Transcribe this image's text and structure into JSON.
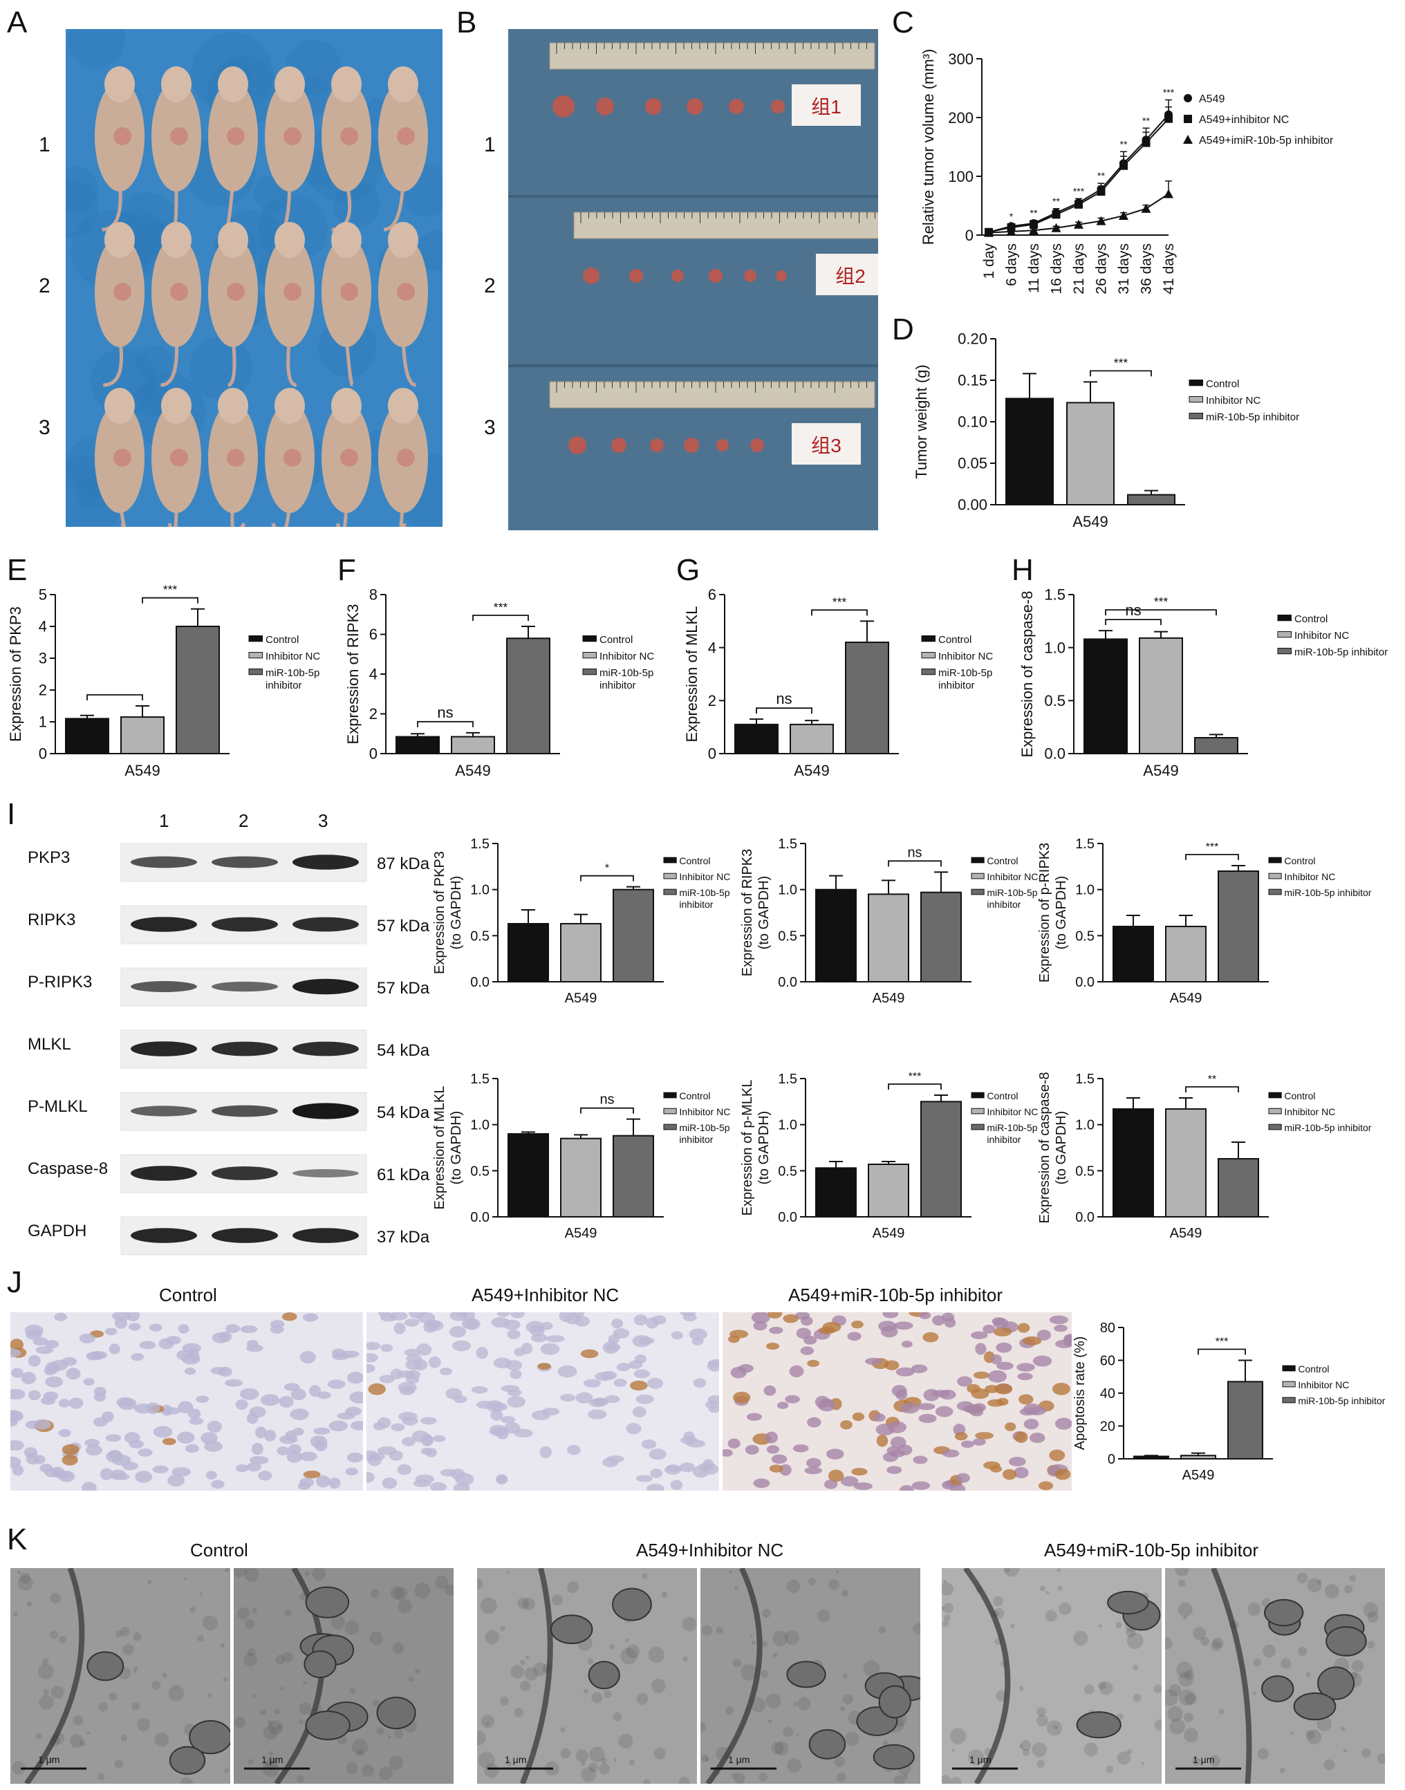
{
  "panels": {
    "A": "A",
    "B": "B",
    "C": "C",
    "D": "D",
    "E": "E",
    "F": "F",
    "G": "G",
    "H": "H",
    "I": "I",
    "J": "J",
    "K": "K"
  },
  "row_numbers": [
    "1",
    "2",
    "3"
  ],
  "group_labels_b": [
    "组1",
    "组2",
    "组3"
  ],
  "blot": {
    "lanes": [
      "1",
      "2",
      "3"
    ],
    "proteins": [
      "PKP3",
      "RIPK3",
      "P-RIPK3",
      "MLKL",
      "P-MLKL",
      "Caspase-8",
      "GAPDH"
    ],
    "sizes": [
      "87 kDa",
      "57 kDa",
      "57 kDa",
      "54 kDa",
      "54 kDa",
      "61 kDa",
      "37 kDa"
    ],
    "intensity": [
      [
        0.55,
        0.55,
        0.85
      ],
      [
        0.85,
        0.8,
        0.8
      ],
      [
        0.5,
        0.4,
        0.9
      ],
      [
        0.85,
        0.8,
        0.8
      ],
      [
        0.45,
        0.55,
        0.95
      ],
      [
        0.85,
        0.75,
        0.25
      ],
      [
        0.85,
        0.85,
        0.85
      ]
    ]
  },
  "ihc": {
    "titles": [
      "Control",
      "A549+Inhibitor NC",
      "A549+miR-10b-5p inhibitor"
    ]
  },
  "tem": {
    "titles": [
      "Control",
      "A549+Inhibitor NC",
      "A549+miR-10b-5p inhibitor"
    ],
    "scale_label": "1 μm"
  },
  "colors": {
    "black": "#111111",
    "light": "#b3b3b3",
    "dark": "#6b6b6b",
    "mouse": "#c9ad98",
    "towel": "#3a86c4",
    "bench": "#4e7390"
  },
  "chart_data": [
    {
      "id": "C",
      "type": "line",
      "ylabel": "Relative tumor volume (mm³)",
      "ylim": [
        0,
        300
      ],
      "yticks": [
        0,
        100,
        200,
        300
      ],
      "categories": [
        "1 day",
        "6 days",
        "11 days",
        "16 days",
        "21 days",
        "26 days",
        "31 days",
        "36 days",
        "41 days"
      ],
      "series": [
        {
          "name": "A549",
          "marker": "circle",
          "values": [
            5,
            15,
            20,
            38,
            55,
            78,
            122,
            162,
            205
          ],
          "err": [
            3,
            4,
            5,
            7,
            7,
            10,
            20,
            20,
            25
          ]
        },
        {
          "name": "A549+inhibitor NC",
          "marker": "square",
          "values": [
            5,
            13,
            18,
            35,
            52,
            74,
            118,
            157,
            198
          ],
          "err": [
            3,
            4,
            5,
            6,
            7,
            9,
            16,
            18,
            20
          ]
        },
        {
          "name": "A549+imiR-10b-5p inhibitor",
          "marker": "triangle",
          "values": [
            4,
            6,
            8,
            12,
            18,
            24,
            33,
            45,
            70
          ],
          "err": [
            2,
            2,
            3,
            3,
            4,
            5,
            5,
            6,
            22
          ]
        }
      ],
      "sig": [
        "*",
        "**",
        "**",
        "***",
        "**",
        "**",
        "**",
        "***"
      ]
    },
    {
      "id": "D",
      "type": "bar",
      "ylabel": "Tumor weight (g)",
      "xlabel": "A549",
      "ylim": [
        0,
        0.2
      ],
      "yticks": [
        "0.00",
        "0.05",
        "0.10",
        "0.15",
        "0.20"
      ],
      "series": [
        {
          "name": "Control",
          "value": 0.128,
          "err": 0.03
        },
        {
          "name": "Inhibitor NC",
          "value": 0.123,
          "err": 0.025
        },
        {
          "name": "miR-10b-5p inhibitor",
          "value": 0.012,
          "err": 0.005
        }
      ],
      "brackets": [
        {
          "from": 1,
          "to": 2,
          "label": "***"
        }
      ]
    },
    {
      "id": "E",
      "type": "bar",
      "ylabel": "Expression of PKP3",
      "xlabel": "A549",
      "ylim": [
        0,
        5
      ],
      "yticks": [
        "0",
        "1",
        "2",
        "3",
        "4",
        "5"
      ],
      "series": [
        {
          "name": "Control",
          "value": 1.1,
          "err": 0.1
        },
        {
          "name": "Inhibitor NC",
          "value": 1.15,
          "err": 0.35
        },
        {
          "name": "miR-10b-5p inhibitor",
          "value": 4.0,
          "err": 0.55
        }
      ],
      "brackets": [
        {
          "from": 0,
          "to": 1,
          "label": ""
        },
        {
          "from": 1,
          "to": 2,
          "label": "***"
        }
      ]
    },
    {
      "id": "F",
      "type": "bar",
      "ylabel": "Expression of RIPK3",
      "xlabel": "A549",
      "ylim": [
        0,
        8
      ],
      "yticks": [
        "0",
        "2",
        "4",
        "6",
        "8"
      ],
      "series": [
        {
          "name": "Control",
          "value": 0.85,
          "err": 0.15
        },
        {
          "name": "Inhibitor NC",
          "value": 0.85,
          "err": 0.2
        },
        {
          "name": "miR-10b-5p inhibitor",
          "value": 5.8,
          "err": 0.6
        }
      ],
      "brackets": [
        {
          "from": 0,
          "to": 1,
          "label": "ns"
        },
        {
          "from": 1,
          "to": 2,
          "label": "***"
        }
      ]
    },
    {
      "id": "G",
      "type": "bar",
      "ylabel": "Expression of MLKL",
      "xlabel": "A549",
      "ylim": [
        0,
        6
      ],
      "yticks": [
        "0",
        "2",
        "4",
        "6"
      ],
      "series": [
        {
          "name": "Control",
          "value": 1.1,
          "err": 0.2
        },
        {
          "name": "Inhibitor NC",
          "value": 1.1,
          "err": 0.15
        },
        {
          "name": "miR-10b-5p inhibitor",
          "value": 4.2,
          "err": 0.8
        }
      ],
      "brackets": [
        {
          "from": 0,
          "to": 1,
          "label": "ns"
        },
        {
          "from": 1,
          "to": 2,
          "label": "***"
        }
      ]
    },
    {
      "id": "H",
      "type": "bar",
      "ylabel": "Expression of caspase-8",
      "xlabel": "A549",
      "ylim": [
        0,
        1.5
      ],
      "yticks": [
        "0.0",
        "0.5",
        "1.0",
        "1.5"
      ],
      "series": [
        {
          "name": "Control",
          "value": 1.08,
          "err": 0.08
        },
        {
          "name": "Inhibitor NC",
          "value": 1.09,
          "err": 0.06
        },
        {
          "name": "miR-10b-5p inhibitor",
          "value": 0.15,
          "err": 0.03
        }
      ],
      "brackets": [
        {
          "from": 0,
          "to": 1,
          "label": "ns"
        },
        {
          "from": 0,
          "to": 2,
          "label": "***"
        }
      ]
    },
    {
      "id": "I1",
      "type": "bar",
      "ylabel": "Expression of PKP3 (to GAPDH)",
      "xlabel": "A549",
      "ylim": [
        0,
        1.5
      ],
      "yticks": [
        "0.0",
        "0.5",
        "1.0",
        "1.5"
      ],
      "series": [
        {
          "name": "Control",
          "value": 0.63,
          "err": 0.15
        },
        {
          "name": "Inhibitor NC",
          "value": 0.63,
          "err": 0.1
        },
        {
          "name": "miR-10b-5p inhibitor",
          "value": 1.0,
          "err": 0.03
        }
      ],
      "brackets": [
        {
          "from": 1,
          "to": 2,
          "label": "*"
        }
      ]
    },
    {
      "id": "I2",
      "type": "bar",
      "ylabel": "Expression of RIPK3 (to GAPDH)",
      "xlabel": "A549",
      "ylim": [
        0,
        1.5
      ],
      "yticks": [
        "0.0",
        "0.5",
        "1.0",
        "1.5"
      ],
      "series": [
        {
          "name": "Control",
          "value": 1.0,
          "err": 0.15
        },
        {
          "name": "Inhibitor NC",
          "value": 0.95,
          "err": 0.15
        },
        {
          "name": "miR-10b-5p inhibitor",
          "value": 0.97,
          "err": 0.22
        }
      ],
      "brackets": [
        {
          "from": 1,
          "to": 2,
          "label": "ns"
        }
      ]
    },
    {
      "id": "I3",
      "type": "bar",
      "ylabel": "Expression of p-RIPK3 (to GAPDH)",
      "xlabel": "A549",
      "ylim": [
        0,
        1.5
      ],
      "yticks": [
        "0.0",
        "0.5",
        "1.0",
        "1.5"
      ],
      "series": [
        {
          "name": "Control",
          "value": 0.6,
          "err": 0.12
        },
        {
          "name": "Inhibitor NC",
          "value": 0.6,
          "err": 0.12
        },
        {
          "name": "miR-10b-5p inhibitor",
          "value": 1.2,
          "err": 0.06
        }
      ],
      "brackets": [
        {
          "from": 1,
          "to": 2,
          "label": "***"
        }
      ]
    },
    {
      "id": "I4",
      "type": "bar",
      "ylabel": "Expression of MLKL (to GAPDH)",
      "xlabel": "A549",
      "ylim": [
        0,
        1.5
      ],
      "yticks": [
        "0.0",
        "0.5",
        "1.0",
        "1.5"
      ],
      "series": [
        {
          "name": "Control",
          "value": 0.9,
          "err": 0.02
        },
        {
          "name": "Inhibitor NC",
          "value": 0.85,
          "err": 0.04
        },
        {
          "name": "miR-10b-5p inhibitor",
          "value": 0.88,
          "err": 0.18
        }
      ],
      "brackets": [
        {
          "from": 1,
          "to": 2,
          "label": "ns"
        }
      ]
    },
    {
      "id": "I5",
      "type": "bar",
      "ylabel": "Expression of p-MLKL (to GAPDH)",
      "xlabel": "A549",
      "ylim": [
        0,
        1.5
      ],
      "yticks": [
        "0.0",
        "0.5",
        "1.0",
        "1.5"
      ],
      "series": [
        {
          "name": "Control",
          "value": 0.53,
          "err": 0.07
        },
        {
          "name": "Inhibitor NC",
          "value": 0.57,
          "err": 0.03
        },
        {
          "name": "miR-10b-5p inhibitor",
          "value": 1.25,
          "err": 0.07
        }
      ],
      "brackets": [
        {
          "from": 1,
          "to": 2,
          "label": "***"
        }
      ]
    },
    {
      "id": "I6",
      "type": "bar",
      "ylabel": "Expression of caspase-8 (to GAPDH)",
      "xlabel": "A549",
      "ylim": [
        0,
        1.5
      ],
      "yticks": [
        "0.0",
        "0.5",
        "1.0",
        "1.5"
      ],
      "series": [
        {
          "name": "Control",
          "value": 1.17,
          "err": 0.12
        },
        {
          "name": "Inhibitor NC",
          "value": 1.17,
          "err": 0.12
        },
        {
          "name": "miR-10b-5p inhibitor",
          "value": 0.63,
          "err": 0.18
        }
      ],
      "brackets": [
        {
          "from": 1,
          "to": 2,
          "label": "**"
        }
      ]
    },
    {
      "id": "J",
      "type": "bar",
      "ylabel": "Apoptosis rate (%)",
      "xlabel": "A549",
      "ylim": [
        0,
        80
      ],
      "yticks": [
        "0",
        "20",
        "40",
        "60",
        "80"
      ],
      "series": [
        {
          "name": "Control",
          "value": 1.5,
          "err": 0.5
        },
        {
          "name": "Inhibitor NC",
          "value": 2.0,
          "err": 1.5
        },
        {
          "name": "miR-10b-5p inhibitor",
          "value": 47,
          "err": 13
        }
      ],
      "brackets": [
        {
          "from": 1,
          "to": 2,
          "label": "***"
        }
      ]
    }
  ]
}
